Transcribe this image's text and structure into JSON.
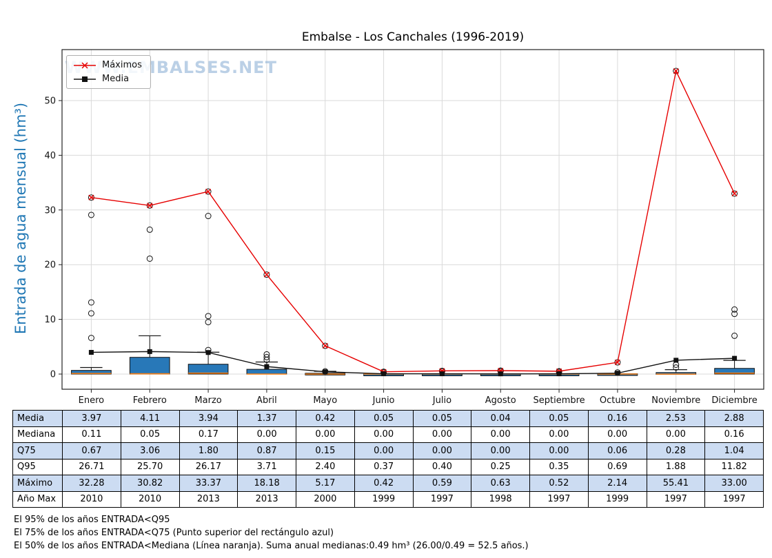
{
  "title": "Embalse - Los Canchales (1996-2019)",
  "watermark": "WWW.EMBALSES.NET",
  "ylabel": "Entrada de agua mensual (hm³)",
  "legend": {
    "maximos": "Máximos",
    "media": "Media"
  },
  "colors": {
    "max_line": "#e60000",
    "mean_line": "#111111",
    "box_fill": "#2878b8",
    "box_edge": "#111111",
    "median_line": "#ff7f0e",
    "ylabel": "#1f77b4",
    "watermark": "#8fb2d6",
    "table_alt_row": "#ccdcf2",
    "grid": "#d9d9d9",
    "axis": "#222222"
  },
  "chart_data": {
    "type": "boxplot",
    "title": "Embalse - Los Canchales (1996-2019)",
    "xlabel": "",
    "ylabel": "Entrada de agua mensual (hm³)",
    "grid": true,
    "legend_position": "upper-left",
    "yticks": [
      0,
      10,
      20,
      30,
      40,
      50
    ],
    "ylim": [
      -2.8,
      59.5
    ],
    "categories": [
      "Enero",
      "Febrero",
      "Marzo",
      "Abril",
      "Mayo",
      "Junio",
      "Julio",
      "Agosto",
      "Septiembre",
      "Octubre",
      "Noviembre",
      "Diciembre"
    ],
    "series": [
      {
        "name": "Máximos",
        "marker": "x",
        "values": [
          32.28,
          30.82,
          33.37,
          18.18,
          5.17,
          0.42,
          0.59,
          0.63,
          0.52,
          2.14,
          55.41,
          33.0
        ]
      },
      {
        "name": "Media",
        "marker": "square",
        "values": [
          3.97,
          4.11,
          3.94,
          1.37,
          0.42,
          0.05,
          0.05,
          0.04,
          0.05,
          0.16,
          2.53,
          2.88
        ]
      }
    ],
    "boxplot": {
      "q25": [
        0,
        0,
        0,
        0,
        0,
        0,
        0,
        0,
        0,
        0,
        0,
        0
      ],
      "median": [
        0.11,
        0.05,
        0.17,
        0.0,
        0.0,
        0.0,
        0.0,
        0.0,
        0.0,
        0.0,
        0.0,
        0.16
      ],
      "q75": [
        0.67,
        3.06,
        1.8,
        0.87,
        0.15,
        0.0,
        0.0,
        0.0,
        0.0,
        0.06,
        0.28,
        1.04
      ],
      "whisker_high": [
        1.2,
        7.0,
        4.0,
        2.2,
        0.5,
        0.05,
        0.1,
        0.1,
        0.05,
        0.15,
        0.8,
        2.5
      ],
      "outliers": [
        [
          29.1,
          13.1,
          11.1,
          6.6
        ],
        [
          26.4,
          21.1
        ],
        [
          28.9,
          10.6,
          9.5,
          4.4
        ],
        [
          3.6,
          3.1,
          2.6
        ],
        [
          0.5
        ],
        [
          0.3
        ],
        [
          0.5
        ],
        [
          0.5
        ],
        [
          0.4
        ],
        [
          0.3
        ],
        [
          1.7,
          1.2
        ],
        [
          11.8,
          11.0,
          7.0
        ]
      ]
    }
  },
  "table": {
    "row_labels": [
      "Media",
      "Mediana",
      "Q75",
      "Q95",
      "Máximo",
      "Año Max"
    ],
    "rows": [
      [
        "3.97",
        "4.11",
        "3.94",
        "1.37",
        "0.42",
        "0.05",
        "0.05",
        "0.04",
        "0.05",
        "0.16",
        "2.53",
        "2.88"
      ],
      [
        "0.11",
        "0.05",
        "0.17",
        "0.00",
        "0.00",
        "0.00",
        "0.00",
        "0.00",
        "0.00",
        "0.00",
        "0.00",
        "0.16"
      ],
      [
        "0.67",
        "3.06",
        "1.80",
        "0.87",
        "0.15",
        "0.00",
        "0.00",
        "0.00",
        "0.00",
        "0.06",
        "0.28",
        "1.04"
      ],
      [
        "26.71",
        "25.70",
        "26.17",
        "3.71",
        "2.40",
        "0.37",
        "0.40",
        "0.25",
        "0.35",
        "0.69",
        "1.88",
        "11.82"
      ],
      [
        "32.28",
        "30.82",
        "33.37",
        "18.18",
        "5.17",
        "0.42",
        "0.59",
        "0.63",
        "0.52",
        "2.14",
        "55.41",
        "33.00"
      ],
      [
        "2010",
        "2010",
        "2013",
        "2013",
        "2000",
        "1999",
        "1997",
        "1998",
        "1997",
        "1999",
        "1997",
        "1997"
      ]
    ]
  },
  "footnotes": [
    "El 95% de los años ENTRADA<Q95",
    "El 75% de los años ENTRADA<Q75 (Punto superior del rectángulo azul)",
    "El 50% de los años ENTRADA<Mediana (Línea naranja). Suma anual medianas:0.49 hm³ (26.00/0.49 = 52.5 años.)"
  ]
}
